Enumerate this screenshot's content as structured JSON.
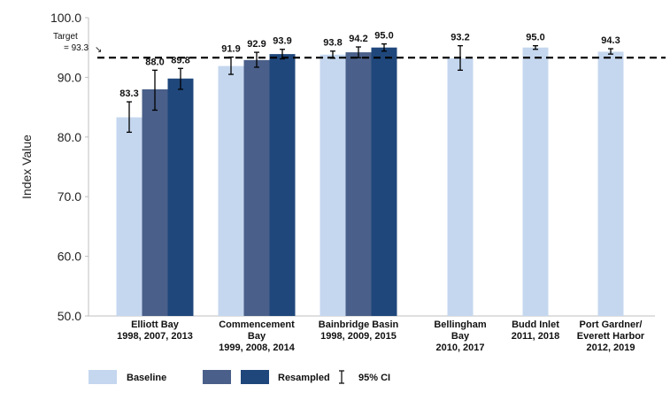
{
  "chart_data": {
    "type": "bar",
    "ylabel": "Index Value",
    "ylim": [
      50,
      100
    ],
    "yticks": [
      "50.0",
      "60.0",
      "70.0",
      "80.0",
      "90.0",
      "100.0"
    ],
    "target": {
      "label_line1": "Target",
      "label_line2": "= 93.3",
      "arrow": "↘",
      "value": 93.3
    },
    "categories": [
      {
        "lines": [
          "Elliott Bay",
          "1998, 2007, 2013"
        ],
        "bars": [
          {
            "value": 83.3,
            "label": "83.3",
            "ci": [
              80.8,
              85.9
            ],
            "kind": "baseline"
          },
          {
            "value": 88.0,
            "label": "88.0",
            "ci": [
              84.5,
              91.2
            ],
            "kind": "resampled1"
          },
          {
            "value": 89.8,
            "label": "89.8",
            "ci": [
              88.0,
              91.5
            ],
            "kind": "resampled2"
          }
        ]
      },
      {
        "lines": [
          "Commencement",
          "Bay",
          "1999, 2008, 2014"
        ],
        "bars": [
          {
            "value": 91.9,
            "label": "91.9",
            "ci": [
              90.5,
              93.4
            ],
            "kind": "baseline"
          },
          {
            "value": 92.9,
            "label": "92.9",
            "ci": [
              91.7,
              94.2
            ],
            "kind": "resampled1"
          },
          {
            "value": 93.9,
            "label": "93.9",
            "ci": [
              93.1,
              94.7
            ],
            "kind": "resampled2"
          }
        ]
      },
      {
        "lines": [
          "Bainbridge Basin",
          "1998, 2009, 2015"
        ],
        "bars": [
          {
            "value": 93.8,
            "label": "93.8",
            "ci": [
              93.2,
              94.4
            ],
            "kind": "baseline"
          },
          {
            "value": 94.2,
            "label": "94.2",
            "ci": [
              93.3,
              95.1
            ],
            "kind": "resampled1"
          },
          {
            "value": 95.0,
            "label": "95.0",
            "ci": [
              94.4,
              95.6
            ],
            "kind": "resampled2"
          }
        ]
      },
      {
        "lines": [
          "Bellingham",
          "Bay",
          "2010, 2017"
        ],
        "bars": [
          {
            "value": 93.2,
            "label": "93.2",
            "ci": [
              91.2,
              95.3
            ],
            "kind": "baseline"
          }
        ]
      },
      {
        "lines": [
          "Budd Inlet",
          "2011, 2018"
        ],
        "bars": [
          {
            "value": 95.0,
            "label": "95.0",
            "ci": [
              94.7,
              95.3
            ],
            "kind": "baseline"
          }
        ]
      },
      {
        "lines": [
          "Port Gardner/",
          "Everett Harbor",
          "2012, 2019"
        ],
        "bars": [
          {
            "value": 94.3,
            "label": "94.3",
            "ci": [
              93.9,
              94.8
            ],
            "kind": "baseline"
          }
        ]
      }
    ],
    "legend": {
      "baseline": "Baseline",
      "resampled": "Resampled",
      "ci": "95% CI"
    },
    "colors": {
      "baseline": "#c5d7ef",
      "resampled1": "#4a5f89",
      "resampled2": "#1f477b",
      "target": "#000000",
      "axis": "#bfbfbf"
    }
  }
}
